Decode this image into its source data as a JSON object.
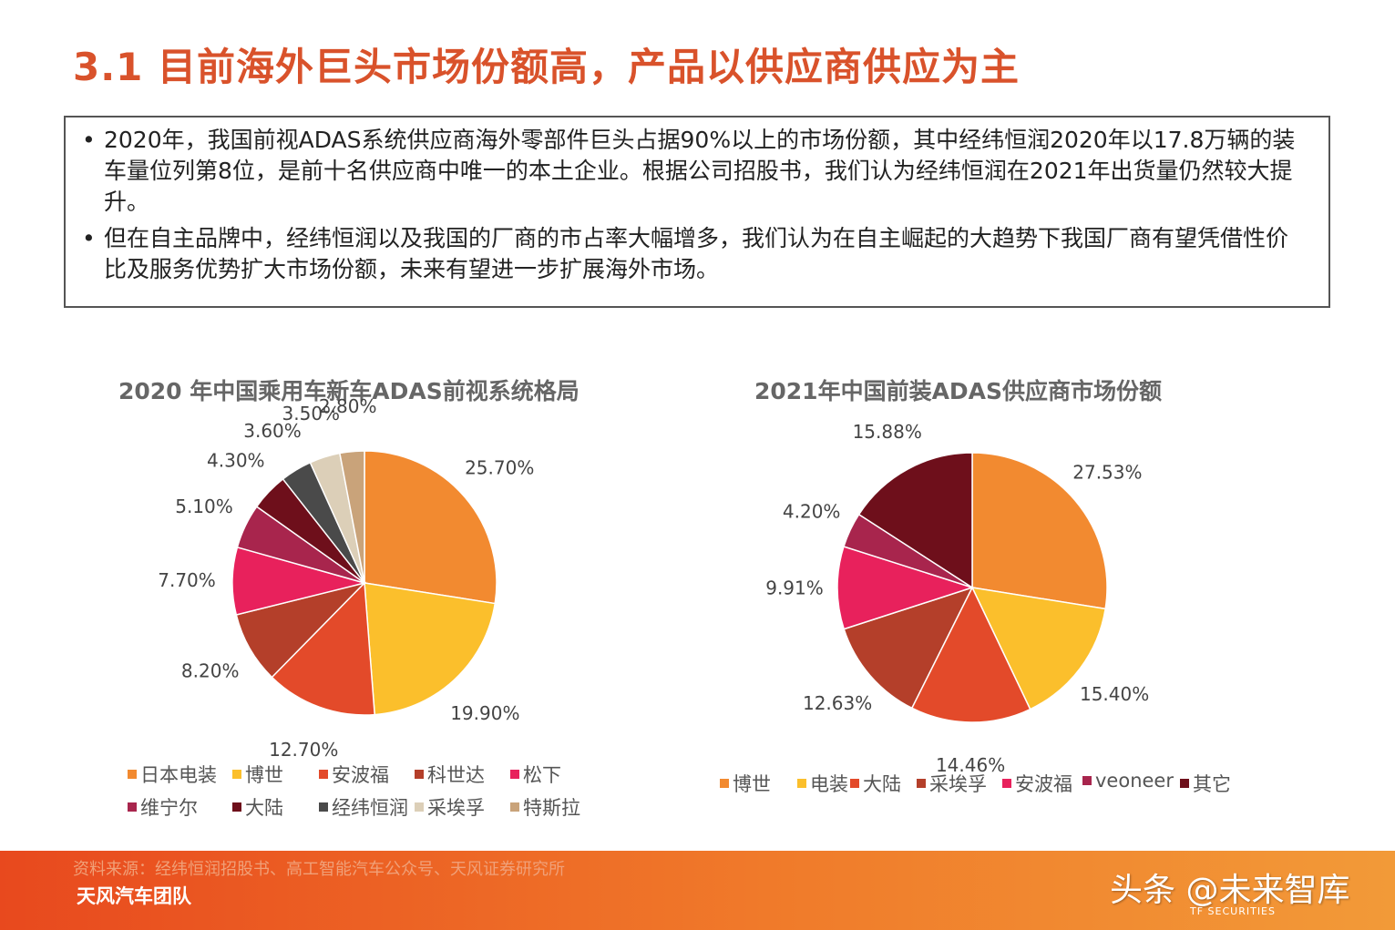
{
  "page": {
    "title": "3.1 目前海外巨头市场份额高，产品以供应商供应为主",
    "bullets": [
      "2020年，我国前视ADAS系统供应商海外零部件巨头占据90%以上的市场份额，其中经纬恒润2020年以17.8万辆的装车量位列第8位，是前十名供应商中唯一的本土企业。根据公司招股书，我们认为经纬恒润在2021年出货量仍然较大提升。",
      "但在自主品牌中，经纬恒润以及我国的厂商的市占率大幅增多，我们认为在自主崛起的大趋势下我国厂商有望凭借性价比及服务优势扩大市场份额，未来有望进一步扩展海外市场。"
    ],
    "bullet_symbol": "•"
  },
  "chart_data": [
    {
      "type": "pie",
      "title": "2020 年中国乘用车新车ADAS前视系统格局",
      "categories": [
        "日本电装",
        "博世",
        "安波福",
        "科世达",
        "松下",
        "维宁尔",
        "大陆",
        "经纬恒润",
        "采埃孚",
        "特斯拉"
      ],
      "values": [
        25.7,
        19.9,
        12.7,
        8.2,
        7.7,
        5.1,
        4.3,
        3.6,
        3.5,
        2.8
      ],
      "labels": [
        "25.70%",
        "19.90%",
        "12.70%",
        "8.20%",
        "7.70%",
        "5.10%",
        "4.30%",
        "3.60%",
        "3.50%",
        "2.80%"
      ],
      "colors": [
        "#f28a30",
        "#fbbf2c",
        "#e34a2a",
        "#b43f2a",
        "#e8215c",
        "#a8254d",
        "#6e0f1b",
        "#4a4a4a",
        "#dccfb8",
        "#c9a37a"
      ],
      "legend_position": "bottom"
    },
    {
      "type": "pie",
      "title": "2021年中国前装ADAS供应商市场份额",
      "categories": [
        "博世",
        "电装",
        "大陆",
        "采埃孚",
        "安波福",
        "veoneer",
        "其它"
      ],
      "values": [
        27.53,
        15.4,
        14.46,
        12.63,
        9.91,
        4.2,
        15.88
      ],
      "labels": [
        "27.53%",
        "15.40%",
        "14.46%",
        "12.63%",
        "9.91%",
        "4.20%",
        "15.88%"
      ],
      "colors": [
        "#f28a30",
        "#fbbf2c",
        "#e34a2a",
        "#b43f2a",
        "#e8215c",
        "#a8254d",
        "#6e0f1b"
      ],
      "legend_position": "bottom"
    }
  ],
  "footer": {
    "source": "资料来源：经纬恒润招股书、高工智能汽车公众号、天风证券研究所",
    "team": "天风汽车团队",
    "logo_text": "TF SECURITIES",
    "watermark": "头条 @未来智库"
  }
}
